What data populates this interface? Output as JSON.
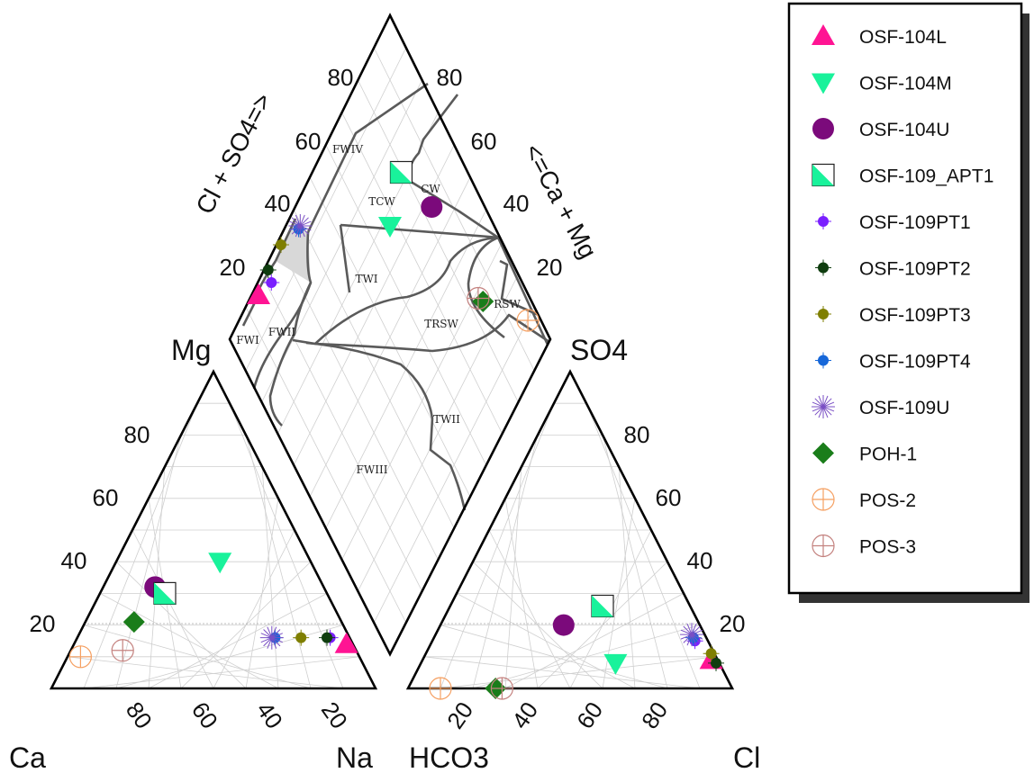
{
  "chart_data": {
    "type": "scatter",
    "subtype": "piper-diagram",
    "grid": true,
    "legend_position": "right",
    "cation_triangle": {
      "corner_labels": {
        "top": "Mg",
        "left": "Ca",
        "right": "Na"
      },
      "tick_labels_left": [
        "20",
        "40",
        "60",
        "80"
      ],
      "tick_labels_bottom": [
        "80",
        "60",
        "40",
        "20"
      ]
    },
    "anion_triangle": {
      "corner_labels": {
        "top": "SO4",
        "left": "HCO3",
        "right": "Cl"
      },
      "tick_labels_right": [
        "20",
        "40",
        "60",
        "80"
      ],
      "tick_labels_bottom": [
        "20",
        "40",
        "60",
        "80"
      ]
    },
    "diamond": {
      "left_axis_label": "Cl + SO4=>",
      "right_axis_label": "<=Ca + Mg",
      "tick_labels_left": [
        "20",
        "40",
        "60",
        "80"
      ],
      "tick_labels_right": [
        "20",
        "40",
        "60",
        "80"
      ],
      "zone_labels": [
        "FWIV",
        "TCW",
        "CW",
        "TWI",
        "RSW",
        "TRSW",
        "FWI",
        "FWII",
        "TWII",
        "FWIII"
      ]
    },
    "series": [
      {
        "name": "OSF-104L",
        "marker": "triangle-up",
        "color": "#ff1493",
        "cation": {
          "Ca": 2,
          "Mg": 14,
          "Na": 84
        },
        "anion": {
          "HCO3": 2,
          "SO4": 9,
          "Cl": 89
        }
      },
      {
        "name": "OSF-104M",
        "marker": "triangle-down",
        "color": "#19f29b",
        "cation": {
          "Ca": 28,
          "Mg": 40,
          "Na": 32
        },
        "anion": {
          "HCO3": 32,
          "SO4": 8,
          "Cl": 60
        }
      },
      {
        "name": "OSF-104U",
        "marker": "circle",
        "color": "#7b0a7b",
        "cation": {
          "Ca": 52,
          "Mg": 32,
          "Na": 16
        },
        "anion": {
          "HCO3": 42,
          "SO4": 20,
          "Cl": 38
        }
      },
      {
        "name": "OSF-109_APT1",
        "marker": "half-square",
        "color": "#19f29b",
        "cation": {
          "Ca": 50,
          "Mg": 30,
          "Na": 20
        },
        "anion": {
          "HCO3": 27,
          "SO4": 26,
          "Cl": 47
        }
      },
      {
        "name": "OSF-109PT1",
        "marker": "small-circle",
        "color": "#7a1fff",
        "cation": {
          "Ca": 6,
          "Mg": 16,
          "Na": 78
        },
        "anion": {
          "HCO3": 4,
          "SO4": 15,
          "Cl": 81
        }
      },
      {
        "name": "OSF-109PT2",
        "marker": "small-circle",
        "color": "#0f3d0f",
        "cation": {
          "Ca": 7,
          "Mg": 16,
          "Na": 77
        },
        "anion": {
          "HCO3": 1,
          "SO4": 8,
          "Cl": 91
        }
      },
      {
        "name": "OSF-109PT3",
        "marker": "small-circle",
        "color": "#7f7f00",
        "cation": {
          "Ca": 15,
          "Mg": 16,
          "Na": 69
        },
        "anion": {
          "HCO3": 1,
          "SO4": 11,
          "Cl": 88
        }
      },
      {
        "name": "OSF-109PT4",
        "marker": "small-circle",
        "color": "#1667d9",
        "cation": {
          "Ca": 23,
          "Mg": 16,
          "Na": 61
        },
        "anion": {
          "HCO3": 4,
          "SO4": 16,
          "Cl": 80
        }
      },
      {
        "name": "OSF-109U",
        "marker": "asterisk",
        "color": "#7a4fc4",
        "cation": {
          "Ca": 24,
          "Mg": 16,
          "Na": 60
        },
        "anion": {
          "HCO3": 4,
          "SO4": 17,
          "Cl": 79
        }
      },
      {
        "name": "POH-1",
        "marker": "diamond",
        "color": "#1a7d1a",
        "cation": {
          "Ca": 64,
          "Mg": 21,
          "Na": 15
        },
        "anion": {
          "HCO3": 73,
          "SO4": 0,
          "Cl": 27
        }
      },
      {
        "name": "POS-2",
        "marker": "circle-cross",
        "color": "#f5a062",
        "cation": {
          "Ca": 86,
          "Mg": 10,
          "Na": 4
        },
        "anion": {
          "HCO3": 90,
          "SO4": 0,
          "Cl": 10
        }
      },
      {
        "name": "POS-3",
        "marker": "circle-cross",
        "color": "#c4827f",
        "cation": {
          "Ca": 72,
          "Mg": 12,
          "Na": 16
        },
        "anion": {
          "HCO3": 71,
          "SO4": 0,
          "Cl": 29
        }
      }
    ]
  }
}
